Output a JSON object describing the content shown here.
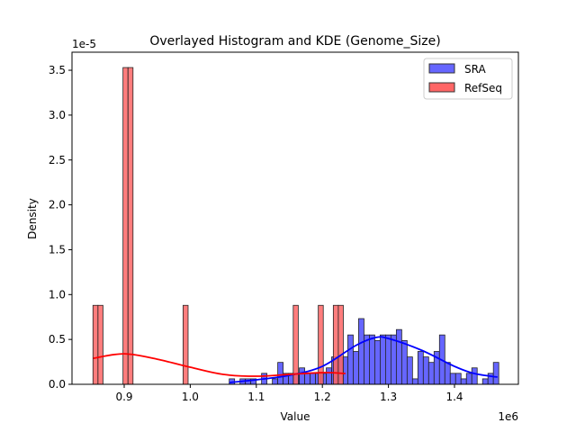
{
  "chart_data": {
    "type": "bar",
    "title": "Overlayed Histogram and KDE (Genome_Size)",
    "xlabel": "Value",
    "ylabel": "Density",
    "x_offset_label": "1e6",
    "y_offset_label": "1e-5",
    "xlim": [
      0.827,
      1.503
    ],
    "ylim": [
      0,
      3.7
    ],
    "x_ticks": [
      0.9,
      1.0,
      1.1,
      1.2,
      1.3,
      1.4
    ],
    "x_tick_labels": [
      "0.9",
      "1.0",
      "1.1",
      "1.2",
      "1.3",
      "1.4"
    ],
    "y_ticks": [
      0,
      0.5,
      1.0,
      1.5,
      2.0,
      2.5,
      3.0,
      3.5
    ],
    "y_tick_labels": [
      "0.0",
      "0.5",
      "1.0",
      "1.5",
      "2.0",
      "2.5",
      "3.0",
      "3.5"
    ],
    "legend": {
      "placement": "top-right",
      "entries": [
        "SRA",
        "RefSeq"
      ]
    },
    "series": [
      {
        "name": "SRA",
        "color": "#6666ff",
        "kde_color": "#0000ff",
        "bin_start": 1.059,
        "bin_width": 0.00816,
        "values": [
          0.061,
          0,
          0.061,
          0.061,
          0.061,
          0,
          0.122,
          0,
          0.061,
          0.244,
          0.122,
          0.122,
          0.122,
          0.183,
          0.122,
          0.122,
          0.122,
          0.122,
          0.183,
          0.305,
          0.305,
          0.305,
          0.55,
          0.366,
          0.732,
          0.55,
          0.55,
          0.488,
          0.55,
          0.55,
          0.55,
          0.61,
          0.488,
          0.305,
          0.061,
          0.366,
          0.305,
          0.244,
          0.366,
          0.55,
          0.244,
          0.122,
          0.122,
          0.061,
          0.122,
          0.183,
          0,
          0.061,
          0.122,
          0.244
        ],
        "kde": [
          [
            1.059,
            0.02
          ],
          [
            1.1,
            0.05
          ],
          [
            1.15,
            0.1
          ],
          [
            1.2,
            0.2
          ],
          [
            1.25,
            0.43
          ],
          [
            1.28,
            0.52
          ],
          [
            1.3,
            0.51
          ],
          [
            1.35,
            0.38
          ],
          [
            1.4,
            0.2
          ],
          [
            1.43,
            0.12
          ],
          [
            1.465,
            0.08
          ]
        ]
      },
      {
        "name": "RefSeq",
        "color": "#ff6666",
        "kde_color": "#ff0000",
        "bin_start": 0.8527,
        "bin_width": 0.00758,
        "values": [
          0.88,
          0.88,
          0,
          0,
          0,
          0,
          3.53,
          3.53,
          0,
          0,
          0,
          0,
          0,
          0,
          0,
          0,
          0,
          0,
          0.88,
          0,
          0,
          0,
          0,
          0,
          0,
          0,
          0,
          0,
          0,
          0,
          0,
          0,
          0,
          0,
          0,
          0,
          0,
          0,
          0,
          0,
          0.88,
          0,
          0,
          0,
          0,
          0.88,
          0,
          0,
          0.88,
          0.88
        ],
        "kde": [
          [
            0.853,
            0.29
          ],
          [
            0.9,
            0.34
          ],
          [
            0.95,
            0.28
          ],
          [
            1.0,
            0.19
          ],
          [
            1.05,
            0.11
          ],
          [
            1.1,
            0.09
          ],
          [
            1.15,
            0.11
          ],
          [
            1.2,
            0.13
          ],
          [
            1.235,
            0.12
          ]
        ]
      }
    ]
  }
}
